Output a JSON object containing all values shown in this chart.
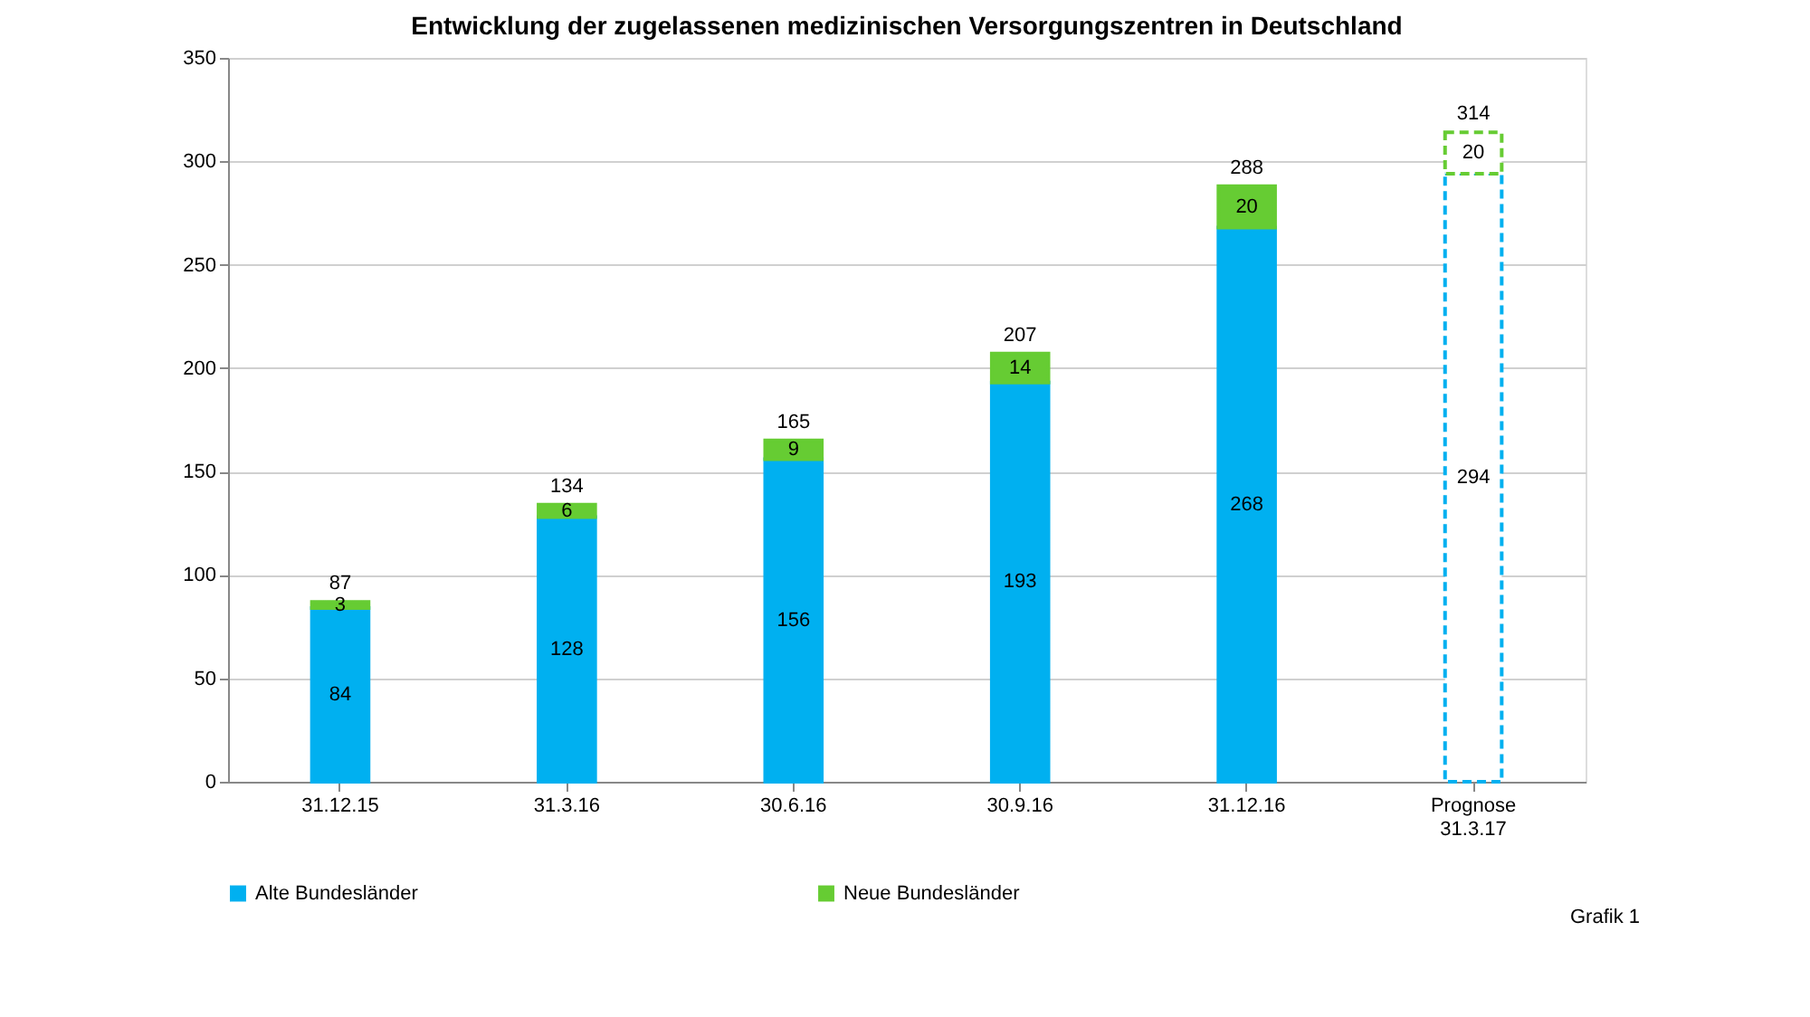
{
  "chart_data": {
    "type": "bar",
    "title": "Entwicklung der zugelassenen medizinischen Versorgungszentren in Deutschland",
    "categories": [
      "31.12.15",
      "31.3.16",
      "30.6.16",
      "30.9.16",
      "31.12.16",
      "Prognose\n31.3.17"
    ],
    "stacked": true,
    "series": [
      {
        "name": "Alte Bundesländer",
        "color": "#00b0f0",
        "colors": [
          "#00b0f0",
          "#00b0f0",
          "#00b0f0",
          "#00b0f0",
          "#00b0f0",
          "#ffffff"
        ],
        "values": [
          84,
          128,
          156,
          193,
          268,
          294
        ]
      },
      {
        "name": "Neue Bundesländer",
        "color": "#66cc33",
        "colors": [
          "#66cc33",
          "#66cc33",
          "#66cc33",
          "#66cc33",
          "#66cc33",
          "#ffffff"
        ],
        "values": [
          3,
          6,
          9,
          14,
          20,
          20
        ]
      }
    ],
    "totals": [
      "87",
      "134",
      "165",
      "207",
      "288",
      "314"
    ],
    "data_labels": true,
    "ylim": [
      0,
      350
    ],
    "yticks": [
      0,
      50,
      100,
      150,
      200,
      250,
      300,
      350
    ],
    "grid": "y",
    "legend": "bottom",
    "annotations": [
      "Grafik 1"
    ]
  }
}
